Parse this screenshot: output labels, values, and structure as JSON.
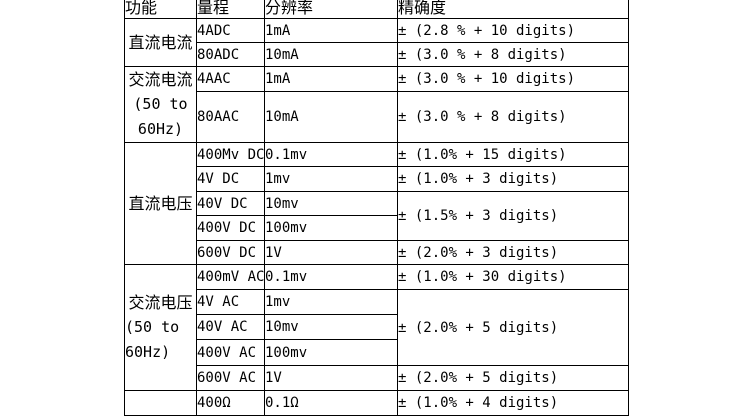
{
  "colors": {
    "border": "#000000",
    "text": "#000000",
    "background": "#ffffff"
  },
  "table": {
    "headers": {
      "function": "功能",
      "range": "量程",
      "resolution": "分辨率",
      "accuracy": "精确度"
    },
    "functions": {
      "dc_current": {
        "label": "直流电流"
      },
      "ac_current": {
        "label": "交流电流",
        "sub1": "(50 to",
        "sub2": "60Hz)"
      },
      "dc_voltage": {
        "label": "直流电压"
      },
      "ac_voltage": {
        "label": "交流电压",
        "sub1": "(50 to",
        "sub2": "60Hz)"
      },
      "resistance": {
        "label": ""
      }
    },
    "rows": [
      {
        "range": "4ADC",
        "resolution": "1mA",
        "accuracy": "± (2.8 % + 10 digits)"
      },
      {
        "range": "80ADC",
        "resolution": "10mA",
        "accuracy": "± (3.0 % + 8 digits)"
      },
      {
        "range": "4AAC",
        "resolution": "1mA",
        "accuracy": "± (3.0 % + 10 digits)"
      },
      {
        "range": "80AAC",
        "resolution": "10mA",
        "accuracy": "± (3.0 % + 8 digits)"
      },
      {
        "range": "400Mv DC",
        "resolution": "0.1mv",
        "accuracy": "± (1.0% + 15 digits)"
      },
      {
        "range": "4V DC",
        "resolution": "1mv",
        "accuracy": "± (1.0% + 3 digits)"
      },
      {
        "range": "40V DC",
        "resolution": "10mv",
        "accuracy": "± (1.5% + 3 digits)"
      },
      {
        "range": "400V DC",
        "resolution": "100mv",
        "accuracy": ""
      },
      {
        "range": "600V DC",
        "resolution": "1V",
        "accuracy": "± (2.0% + 3 digits)"
      },
      {
        "range": "400mV AC",
        "resolution": "0.1mv",
        "accuracy": "± (1.0% + 30 digits)"
      },
      {
        "range": "4V AC",
        "resolution": "1mv",
        "accuracy": "± (2.0% + 5 digits)"
      },
      {
        "range": "40V AC",
        "resolution": "10mv",
        "accuracy": ""
      },
      {
        "range": "400V AC",
        "resolution": "100mv",
        "accuracy": ""
      },
      {
        "range": "600V AC",
        "resolution": "1V",
        "accuracy": "± (2.0% + 5 digits)"
      },
      {
        "range": "400Ω",
        "resolution": "0.1Ω",
        "accuracy": "± (1.0% + 4 digits)"
      }
    ]
  }
}
